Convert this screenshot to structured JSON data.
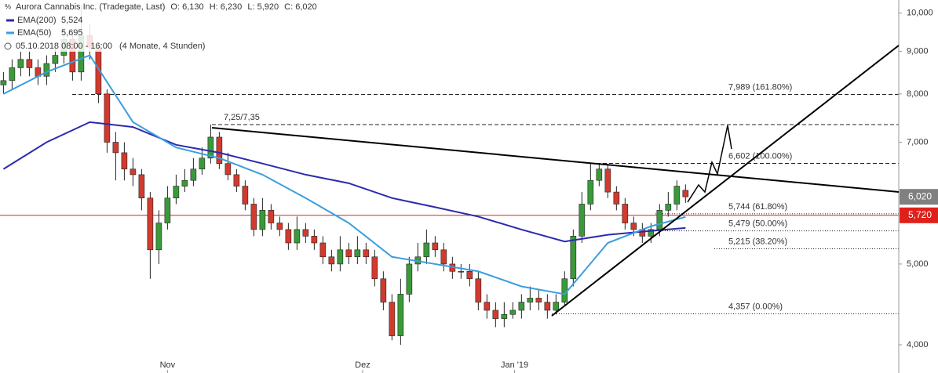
{
  "chart_data": {
    "type": "candlestick",
    "header": {
      "title": "Aurora Cannabis Inc. (Tradegate, Last)",
      "open": "O: 6,130",
      "high": "H: 6,230",
      "low": "L: 5,920",
      "close": "C: 6,020",
      "period": "05.10.2018 08:00 - 16:00",
      "range": "(4 Monate, 4 Stunden)"
    },
    "log_scale": true,
    "ylim": [
      3.7,
      10.37
    ],
    "yticks": [
      {
        "value": 4,
        "label": "4,000"
      },
      {
        "value": 5,
        "label": "5,000"
      },
      {
        "value": 7,
        "label": "7,000"
      },
      {
        "value": 8,
        "label": "8,000"
      },
      {
        "value": 9,
        "label": "9,000"
      },
      {
        "value": 10,
        "label": "10,000"
      }
    ],
    "xlim": [
      -0.4,
      103.7
    ],
    "xticks": [
      {
        "value": 19,
        "label": "Nov"
      },
      {
        "value": 41.6,
        "label": "Dez"
      },
      {
        "value": 59.2,
        "label": "Jan '19"
      }
    ],
    "candles": {
      "up_color": "#3a9a3a",
      "down_color": "#d23a2e",
      "open": [
        8.2,
        8.3,
        8.6,
        8.8,
        8.6,
        8.4,
        8.7,
        8.9,
        9.3,
        8.5,
        9.4,
        9.1,
        8.0,
        7.0,
        6.8,
        6.5,
        6.4,
        6.0,
        5.2,
        5.6,
        6.0,
        6.2,
        6.3,
        6.5,
        6.7,
        7.1,
        6.6,
        6.4,
        6.2,
        5.9,
        5.5,
        5.8,
        5.6,
        5.5,
        5.3,
        5.5,
        5.4,
        5.3,
        5.1,
        5.0,
        5.2,
        5.1,
        5.2,
        5.1,
        4.8,
        4.5,
        4.1,
        4.6,
        5.0,
        5.1,
        5.3,
        5.2,
        5.0,
        4.9,
        4.9,
        4.8,
        4.5,
        4.4,
        4.3,
        4.35,
        4.4,
        4.5,
        4.55,
        4.5,
        4.4,
        4.5,
        4.8,
        5.4,
        5.9,
        6.3,
        6.5,
        6.1,
        5.9,
        5.6,
        5.5,
        5.4,
        5.5,
        5.8,
        5.9,
        6.13
      ],
      "high": [
        8.5,
        8.8,
        9.0,
        9.0,
        8.8,
        8.9,
        9.1,
        9.6,
        9.5,
        10.2,
        9.7,
        9.2,
        8.1,
        7.2,
        7.0,
        6.7,
        6.5,
        6.1,
        5.8,
        6.2,
        6.4,
        6.5,
        6.7,
        6.9,
        7.35,
        7.2,
        6.8,
        6.5,
        6.3,
        6.0,
        6.0,
        5.9,
        5.7,
        5.6,
        5.7,
        5.6,
        5.5,
        5.4,
        5.2,
        5.4,
        5.3,
        5.4,
        5.3,
        5.2,
        4.9,
        4.6,
        4.8,
        5.1,
        5.3,
        5.5,
        5.4,
        5.3,
        5.1,
        5.0,
        5.0,
        4.9,
        4.6,
        4.5,
        4.5,
        4.5,
        4.6,
        4.7,
        4.65,
        4.6,
        4.6,
        4.9,
        5.5,
        6.1,
        6.6,
        6.6,
        6.6,
        6.2,
        6.0,
        5.7,
        5.6,
        5.6,
        5.9,
        6.1,
        6.3,
        6.23
      ],
      "low": [
        8.0,
        8.1,
        8.4,
        8.4,
        8.2,
        8.2,
        8.5,
        8.7,
        8.3,
        8.3,
        8.8,
        7.8,
        6.8,
        6.3,
        6.3,
        6.2,
        5.8,
        4.8,
        5.0,
        5.5,
        5.9,
        6.1,
        6.2,
        6.4,
        6.6,
        6.5,
        6.3,
        6.1,
        5.8,
        5.4,
        5.4,
        5.5,
        5.4,
        5.2,
        5.2,
        5.3,
        5.2,
        5.0,
        4.9,
        4.9,
        5.0,
        5.0,
        5.0,
        4.7,
        4.4,
        4.05,
        4.0,
        4.5,
        4.9,
        5.0,
        5.1,
        4.9,
        4.8,
        4.8,
        4.7,
        4.4,
        4.3,
        4.2,
        4.2,
        4.3,
        4.3,
        4.4,
        4.4,
        4.3,
        4.35,
        4.45,
        4.7,
        5.3,
        5.8,
        6.2,
        6.0,
        5.8,
        5.5,
        5.4,
        5.3,
        5.3,
        5.4,
        5.7,
        5.8,
        5.92
      ],
      "close": [
        8.3,
        8.6,
        8.8,
        8.6,
        8.4,
        8.7,
        8.9,
        9.3,
        8.5,
        9.4,
        9.1,
        8.0,
        7.0,
        6.8,
        6.5,
        6.4,
        6.0,
        5.2,
        5.6,
        6.0,
        6.2,
        6.3,
        6.5,
        6.7,
        7.1,
        6.6,
        6.4,
        6.2,
        5.9,
        5.5,
        5.8,
        5.6,
        5.5,
        5.3,
        5.5,
        5.4,
        5.3,
        5.1,
        5.0,
        5.2,
        5.1,
        5.2,
        5.1,
        4.8,
        4.5,
        4.1,
        4.6,
        5.0,
        5.1,
        5.3,
        5.2,
        5.0,
        4.9,
        4.9,
        4.8,
        4.5,
        4.4,
        4.3,
        4.35,
        4.4,
        4.5,
        4.55,
        4.5,
        4.4,
        4.5,
        4.8,
        5.4,
        5.9,
        6.3,
        6.5,
        6.1,
        5.9,
        5.6,
        5.5,
        5.4,
        5.5,
        5.8,
        5.9,
        6.2,
        6.02
      ]
    },
    "series": [
      {
        "name": "EMA(200)",
        "legend_value": "5,524",
        "color": "#2b2bb0",
        "x": [
          0,
          5,
          10,
          15,
          20,
          25,
          30,
          35,
          40,
          45,
          50,
          55,
          60,
          65,
          70,
          75,
          79
        ],
        "values": [
          6.5,
          7.0,
          7.4,
          7.3,
          6.95,
          6.8,
          6.6,
          6.4,
          6.25,
          6.0,
          5.85,
          5.7,
          5.5,
          5.32,
          5.42,
          5.48,
          5.524
        ]
      },
      {
        "name": "EMA(50)",
        "legend_value": "5,695",
        "color": "#3a9ee0",
        "x": [
          0,
          5,
          10,
          15,
          20,
          25,
          30,
          35,
          40,
          45,
          50,
          55,
          60,
          65,
          70,
          75,
          79
        ],
        "values": [
          8.0,
          8.5,
          8.9,
          7.4,
          6.9,
          6.7,
          6.4,
          6.0,
          5.6,
          5.1,
          5.0,
          4.9,
          4.7,
          4.6,
          5.3,
          5.55,
          5.695
        ]
      }
    ],
    "levels": [
      {
        "value": 7.35,
        "label": "7,25/7,35"
      },
      {
        "value": 7.989,
        "label": "7,989 (161.80%)"
      },
      {
        "value": 6.602,
        "label": "6,602 (100.00%)"
      },
      {
        "value": 5.744,
        "label": "5,744 (61.80%)"
      },
      {
        "value": 5.479,
        "label": "5,479 (50.00%)"
      },
      {
        "value": 5.215,
        "label": "5,215 (38.20%)"
      },
      {
        "value": 4.357,
        "label": "4,357 (0.00%)"
      }
    ],
    "price_tags": [
      {
        "value": 6.02,
        "label": "6,020",
        "color": "#808080"
      },
      {
        "value": 5.72,
        "label": "5,720",
        "color": "#e0201a"
      }
    ]
  }
}
